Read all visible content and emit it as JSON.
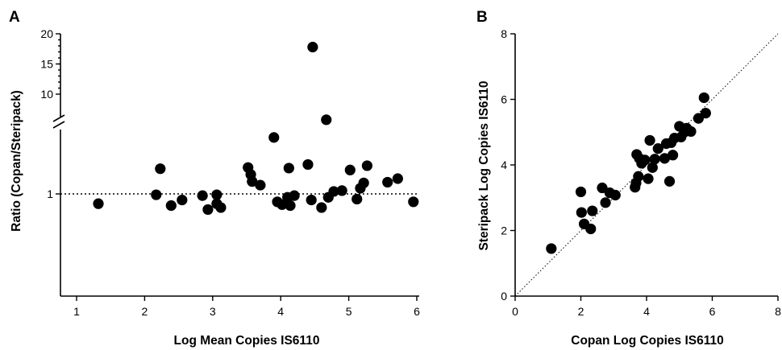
{
  "chart_data": [
    {
      "panel": "A",
      "type": "scatter",
      "xlabel": "Log Mean Copies IS6110",
      "ylabel": "Ratio (Copan/Steripack)",
      "xlim": [
        0.8,
        6.2
      ],
      "xticks": [
        "1",
        "2",
        "3",
        "4",
        "5",
        "6"
      ],
      "y_log_scale": true,
      "y_axis_break": true,
      "ylim_lower_segment": [
        0.3,
        3.0
      ],
      "ylim_upper_segment": [
        8,
        20
      ],
      "yticks_lower": [
        "1"
      ],
      "yticks_upper": [
        "10",
        "15",
        "20"
      ],
      "reference_line": {
        "y": 1,
        "style": "dotted"
      },
      "points": [
        {
          "x": 1.32,
          "y": 0.89
        },
        {
          "x": 2.17,
          "y": 0.99
        },
        {
          "x": 2.23,
          "y": 1.35
        },
        {
          "x": 2.39,
          "y": 0.87
        },
        {
          "x": 2.55,
          "y": 0.93
        },
        {
          "x": 2.85,
          "y": 0.98
        },
        {
          "x": 2.93,
          "y": 0.83
        },
        {
          "x": 3.06,
          "y": 0.99
        },
        {
          "x": 3.06,
          "y": 0.89
        },
        {
          "x": 3.12,
          "y": 0.85
        },
        {
          "x": 3.52,
          "y": 1.37
        },
        {
          "x": 3.56,
          "y": 1.26
        },
        {
          "x": 3.58,
          "y": 1.16
        },
        {
          "x": 3.7,
          "y": 1.11
        },
        {
          "x": 3.9,
          "y": 1.96
        },
        {
          "x": 3.95,
          "y": 0.91
        },
        {
          "x": 4.02,
          "y": 0.88
        },
        {
          "x": 4.1,
          "y": 0.96
        },
        {
          "x": 4.12,
          "y": 1.36
        },
        {
          "x": 4.14,
          "y": 0.87
        },
        {
          "x": 4.2,
          "y": 0.98
        },
        {
          "x": 4.4,
          "y": 1.42
        },
        {
          "x": 4.45,
          "y": 0.93
        },
        {
          "x": 4.47,
          "y": 17.8
        },
        {
          "x": 4.6,
          "y": 0.85
        },
        {
          "x": 4.67,
          "y": 2.42
        },
        {
          "x": 4.7,
          "y": 0.96
        },
        {
          "x": 4.78,
          "y": 1.03
        },
        {
          "x": 4.9,
          "y": 1.04
        },
        {
          "x": 5.02,
          "y": 1.33
        },
        {
          "x": 5.12,
          "y": 0.94
        },
        {
          "x": 5.17,
          "y": 1.07
        },
        {
          "x": 5.22,
          "y": 1.14
        },
        {
          "x": 5.27,
          "y": 1.4
        },
        {
          "x": 5.57,
          "y": 1.15
        },
        {
          "x": 5.72,
          "y": 1.2
        },
        {
          "x": 5.95,
          "y": 0.91
        }
      ]
    },
    {
      "panel": "B",
      "type": "scatter",
      "xlabel": "Copan Log Copies IS6110",
      "ylabel": "Steripack Log Copies IS6110",
      "xlim": [
        0,
        8
      ],
      "ylim": [
        0,
        8
      ],
      "xticks": [
        "0",
        "2",
        "4",
        "6",
        "8"
      ],
      "yticks": [
        "0",
        "2",
        "4",
        "6",
        "8"
      ],
      "reference_line": {
        "type": "identity",
        "style": "dotted"
      },
      "points": [
        {
          "x": 1.1,
          "y": 1.45
        },
        {
          "x": 2.0,
          "y": 3.18
        },
        {
          "x": 2.02,
          "y": 2.55
        },
        {
          "x": 2.1,
          "y": 2.2
        },
        {
          "x": 2.3,
          "y": 2.05
        },
        {
          "x": 2.35,
          "y": 2.6
        },
        {
          "x": 2.65,
          "y": 3.3
        },
        {
          "x": 2.75,
          "y": 2.85
        },
        {
          "x": 2.88,
          "y": 3.15
        },
        {
          "x": 3.05,
          "y": 3.08
        },
        {
          "x": 3.65,
          "y": 3.32
        },
        {
          "x": 3.68,
          "y": 3.45
        },
        {
          "x": 3.7,
          "y": 4.32
        },
        {
          "x": 3.75,
          "y": 3.65
        },
        {
          "x": 3.78,
          "y": 4.2
        },
        {
          "x": 3.85,
          "y": 4.05
        },
        {
          "x": 3.95,
          "y": 4.15
        },
        {
          "x": 4.05,
          "y": 3.58
        },
        {
          "x": 4.1,
          "y": 4.75
        },
        {
          "x": 4.18,
          "y": 3.92
        },
        {
          "x": 4.25,
          "y": 4.18
        },
        {
          "x": 4.35,
          "y": 4.5
        },
        {
          "x": 4.55,
          "y": 4.2
        },
        {
          "x": 4.6,
          "y": 4.65
        },
        {
          "x": 4.7,
          "y": 3.5
        },
        {
          "x": 4.75,
          "y": 4.68
        },
        {
          "x": 4.8,
          "y": 4.3
        },
        {
          "x": 4.85,
          "y": 4.82
        },
        {
          "x": 5.0,
          "y": 5.18
        },
        {
          "x": 5.05,
          "y": 4.85
        },
        {
          "x": 5.15,
          "y": 5.0
        },
        {
          "x": 5.22,
          "y": 5.12
        },
        {
          "x": 5.35,
          "y": 5.02
        },
        {
          "x": 5.58,
          "y": 5.42
        },
        {
          "x": 5.75,
          "y": 6.05
        },
        {
          "x": 5.8,
          "y": 5.58
        }
      ]
    }
  ]
}
